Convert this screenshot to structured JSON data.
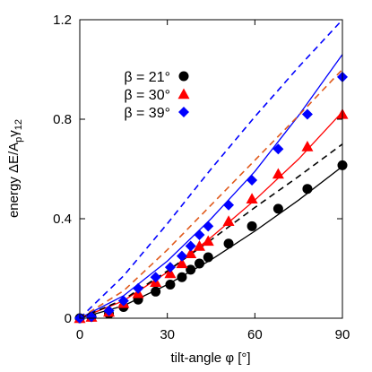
{
  "chart_data": {
    "type": "scatter",
    "title": "",
    "xlabel": "tilt-angle φ [°]",
    "ylabel": "energy ΔE/A",
    "ylabel_sub1": "p",
    "ylabel_mid": "γ",
    "ylabel_sub2": "12",
    "xlim": [
      0,
      90
    ],
    "ylim": [
      0,
      1.2
    ],
    "x_ticks": [
      0,
      30,
      60,
      90
    ],
    "x_tick_labels": [
      "0",
      "30",
      "60",
      "90"
    ],
    "y_ticks": [
      0,
      0.4,
      0.8,
      1.2
    ],
    "y_tick_labels": [
      "0",
      "0.4",
      "0.8",
      "1.2"
    ],
    "grid": false,
    "legend_position": "top-left",
    "series": [
      {
        "name": "β = 21°",
        "color": "#000000",
        "marker": "circle",
        "x": [
          0,
          4,
          10,
          15,
          20,
          26,
          31,
          35,
          38,
          41,
          44,
          51,
          59,
          68,
          78,
          90
        ],
        "y": [
          0,
          0.005,
          0.018,
          0.045,
          0.075,
          0.107,
          0.135,
          0.165,
          0.195,
          0.22,
          0.245,
          0.3,
          0.37,
          0.44,
          0.52,
          0.615
        ]
      },
      {
        "name": "β = 30°",
        "color": "#ff0000",
        "marker": "triangle",
        "x": [
          0,
          4,
          10,
          15,
          20,
          26,
          31,
          35,
          38,
          41,
          44,
          51,
          59,
          68,
          78,
          90
        ],
        "y": [
          0,
          0.005,
          0.025,
          0.06,
          0.1,
          0.145,
          0.18,
          0.22,
          0.26,
          0.29,
          0.31,
          0.39,
          0.48,
          0.58,
          0.69,
          0.82
        ]
      },
      {
        "name": "β = 39°",
        "color": "#0000ff",
        "marker": "diamond",
        "x": [
          0,
          4,
          10,
          15,
          20,
          26,
          31,
          35,
          38,
          41,
          44,
          51,
          59,
          68,
          78,
          90
        ],
        "y": [
          0,
          0.006,
          0.03,
          0.07,
          0.12,
          0.165,
          0.205,
          0.25,
          0.29,
          0.335,
          0.37,
          0.455,
          0.555,
          0.68,
          0.82,
          0.97
        ]
      }
    ],
    "lines": [
      {
        "color": "#000000",
        "dash": false,
        "x": [
          0,
          15,
          30,
          45,
          60,
          75,
          90
        ],
        "y": [
          0,
          0.05,
          0.135,
          0.235,
          0.35,
          0.475,
          0.61
        ]
      },
      {
        "color": "#ff0000",
        "dash": false,
        "x": [
          0,
          15,
          30,
          45,
          60,
          75,
          90
        ],
        "y": [
          0,
          0.07,
          0.185,
          0.325,
          0.475,
          0.64,
          0.83
        ]
      },
      {
        "color": "#0000ff",
        "dash": false,
        "x": [
          0,
          15,
          30,
          45,
          60,
          75,
          90
        ],
        "y": [
          0,
          0.09,
          0.23,
          0.4,
          0.59,
          0.815,
          1.06
        ]
      },
      {
        "color": "#000000",
        "dash": true,
        "x": [
          0,
          15,
          30,
          45,
          60,
          75,
          90
        ],
        "y": [
          0,
          0.075,
          0.19,
          0.315,
          0.445,
          0.57,
          0.7
        ]
      },
      {
        "color": "#e05a1c",
        "dash": true,
        "x": [
          0,
          15,
          30,
          45,
          60,
          75,
          90
        ],
        "y": [
          0,
          0.11,
          0.275,
          0.455,
          0.635,
          0.815,
          1.0
        ]
      },
      {
        "color": "#0000ff",
        "dash": true,
        "x": [
          0,
          15,
          30,
          45,
          60,
          75,
          90
        ],
        "y": [
          0,
          0.17,
          0.38,
          0.6,
          0.81,
          1.01,
          1.2
        ]
      }
    ]
  }
}
